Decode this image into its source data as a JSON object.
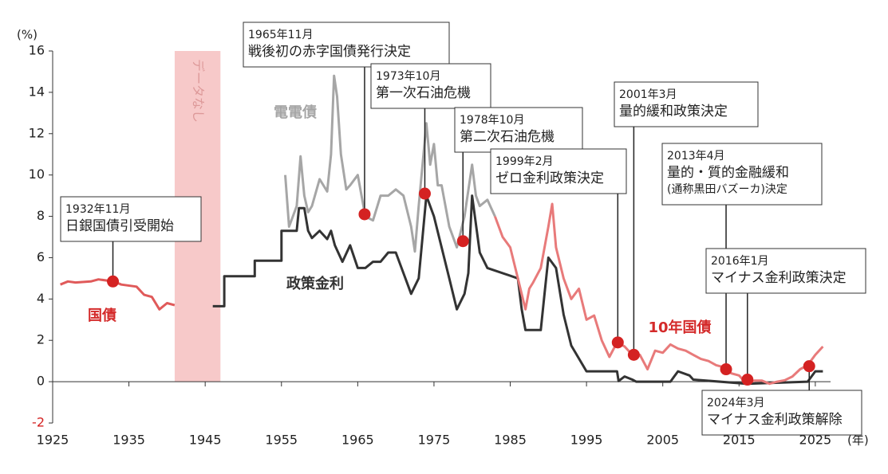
{
  "chart_data": {
    "type": "line",
    "y_unit": "(%)",
    "x_unit": "(年)",
    "xlim": [
      1925,
      2027
    ],
    "xticks": [
      1925,
      1935,
      1945,
      1955,
      1965,
      1975,
      1985,
      1995,
      2005,
      2015,
      2025
    ],
    "ylim": [
      -2,
      16
    ],
    "yticks": [
      -2,
      0,
      2,
      4,
      6,
      8,
      10,
      12,
      14,
      16
    ],
    "shaded": {
      "label": "データなし",
      "x": [
        1941,
        1947
      ],
      "color": "#f7c9c9"
    },
    "series": [
      {
        "name": "国債",
        "color": "#e05a5a",
        "x": [
          1926,
          1927,
          1928,
          1930,
          1931,
          1932,
          1933,
          1934,
          1936,
          1937,
          1938,
          1939,
          1940,
          1941
        ],
        "values": [
          4.7,
          4.85,
          4.8,
          4.85,
          4.95,
          4.9,
          4.85,
          4.7,
          4.6,
          4.2,
          4.1,
          3.5,
          3.8,
          3.7
        ]
      },
      {
        "name": "電電債",
        "color": "#a6a6a6",
        "x": [
          1955.5,
          1956,
          1956.5,
          1957,
          1957.5,
          1958,
          1958.5,
          1959,
          1960,
          1961,
          1961.5,
          1961.9,
          1962.3,
          1962.8,
          1963.5,
          1964,
          1965,
          1966,
          1967,
          1968,
          1969,
          1970,
          1971,
          1972,
          1972.5,
          1973,
          1974,
          1974.5,
          1975,
          1975.5,
          1976,
          1977,
          1978,
          1979,
          1980,
          1980.5,
          1981,
          1982,
          1983
        ],
        "values": [
          10,
          7.5,
          8,
          8.5,
          10.9,
          9,
          8.2,
          8.5,
          9.8,
          9.2,
          11,
          14.8,
          13.8,
          11,
          9.3,
          9.5,
          10,
          8,
          7.8,
          9,
          9,
          9.3,
          9,
          7.5,
          6.3,
          8.5,
          12.5,
          10.5,
          11.5,
          9.5,
          9.5,
          7.5,
          6.5,
          8,
          10.5,
          9,
          8.5,
          8.8,
          8
        ]
      },
      {
        "name": "政策金利",
        "color": "#333333",
        "x": [
          1946,
          1947.5,
          1947.5,
          1951.5,
          1951.5,
          1955,
          1955,
          1957,
          1957.3,
          1958,
          1958.5,
          1959,
          1960,
          1961,
          1961.5,
          1962,
          1963,
          1964,
          1965,
          1966,
          1967,
          1968,
          1969,
          1970,
          1971,
          1972,
          1973,
          1973.5,
          1974,
          1975,
          1976,
          1977,
          1978,
          1979,
          1979.5,
          1980,
          1981,
          1982,
          1986,
          1986.5,
          1987,
          1989,
          1989.5,
          1990,
          1991,
          1992,
          1993,
          1995,
          1999,
          1999.2,
          2000,
          2001,
          2001.5,
          2006,
          2006.5,
          2007,
          2008.5,
          2009,
          2016,
          2024,
          2024.5,
          2025,
          2026
        ],
        "values": [
          3.65,
          3.65,
          5.1,
          5.1,
          5.85,
          5.85,
          7.3,
          7.3,
          8.4,
          8.4,
          7.3,
          6.95,
          7.3,
          6.9,
          7.3,
          6.6,
          5.8,
          6.6,
          5.5,
          5.5,
          5.8,
          5.8,
          6.25,
          6.25,
          5.25,
          4.25,
          5,
          7,
          9,
          8,
          6.5,
          5,
          3.5,
          4.25,
          5.25,
          9,
          6.25,
          5.5,
          5,
          3.5,
          2.5,
          2.5,
          4.25,
          6,
          5.5,
          3.25,
          1.75,
          0.5,
          0.5,
          0.03,
          0.25,
          0.1,
          0,
          0,
          0.25,
          0.5,
          0.3,
          0.1,
          -0.1,
          0,
          0.25,
          0.5,
          0.5
        ]
      },
      {
        "name": "10年国債",
        "color": "#e87a7a",
        "x": [
          1983,
          1984,
          1985,
          1986,
          1987,
          1987.5,
          1988,
          1989,
          1990,
          1990.5,
          1991,
          1992,
          1993,
          1994,
          1995,
          1996,
          1997,
          1998,
          1999,
          2000,
          2001,
          2002,
          2003,
          2004,
          2005,
          2006,
          2007,
          2008,
          2009,
          2010,
          2011,
          2012,
          2013,
          2014,
          2015,
          2016,
          2017,
          2018,
          2019,
          2020,
          2021,
          2022,
          2023,
          2024,
          2025,
          2026
        ],
        "values": [
          8,
          7,
          6.5,
          5,
          3.5,
          4.5,
          4.8,
          5.5,
          7.5,
          8.6,
          6.5,
          5,
          4,
          4.5,
          3,
          3.2,
          2,
          1.2,
          1.9,
          1.7,
          1.3,
          1.3,
          0.6,
          1.5,
          1.4,
          1.8,
          1.6,
          1.5,
          1.3,
          1.1,
          1,
          0.8,
          0.7,
          0.4,
          0.3,
          -0.1,
          0.05,
          0.05,
          -0.1,
          0,
          0.07,
          0.25,
          0.6,
          0.8,
          1.3,
          1.7
        ]
      }
    ],
    "annotations": [
      {
        "lines": [
          "1932年11月",
          "日銀国債引受開始"
        ],
        "x": 1932.9,
        "y": 4.85
      },
      {
        "lines": [
          "1965年11月",
          "戦後初の赤字国債発行決定"
        ],
        "x": 1965.9,
        "y": 8.1
      },
      {
        "lines": [
          "1973年10月",
          "第一次石油危機"
        ],
        "x": 1973.8,
        "y": 9.1
      },
      {
        "lines": [
          "1978年10月",
          "第二次石油危機"
        ],
        "x": 1978.8,
        "y": 6.8
      },
      {
        "lines": [
          "1999年2月",
          "ゼロ金利政策決定"
        ],
        "x": 1999.1,
        "y": 1.9
      },
      {
        "lines": [
          "2001年3月",
          "量的緩和政策決定"
        ],
        "x": 2001.2,
        "y": 1.3
      },
      {
        "lines": [
          "2013年4月",
          "量的・質的金融緩和",
          "(通称黒田バズーカ)決定"
        ],
        "x": 2013.3,
        "y": 0.6
      },
      {
        "lines": [
          "2016年1月",
          "マイナス金利政策決定"
        ],
        "x": 2016.1,
        "y": 0.1
      },
      {
        "lines": [
          "2024年3月",
          "マイナス金利政策解除"
        ],
        "x": 2024.2,
        "y": 0.75
      }
    ],
    "dot_color": "#d42222"
  }
}
